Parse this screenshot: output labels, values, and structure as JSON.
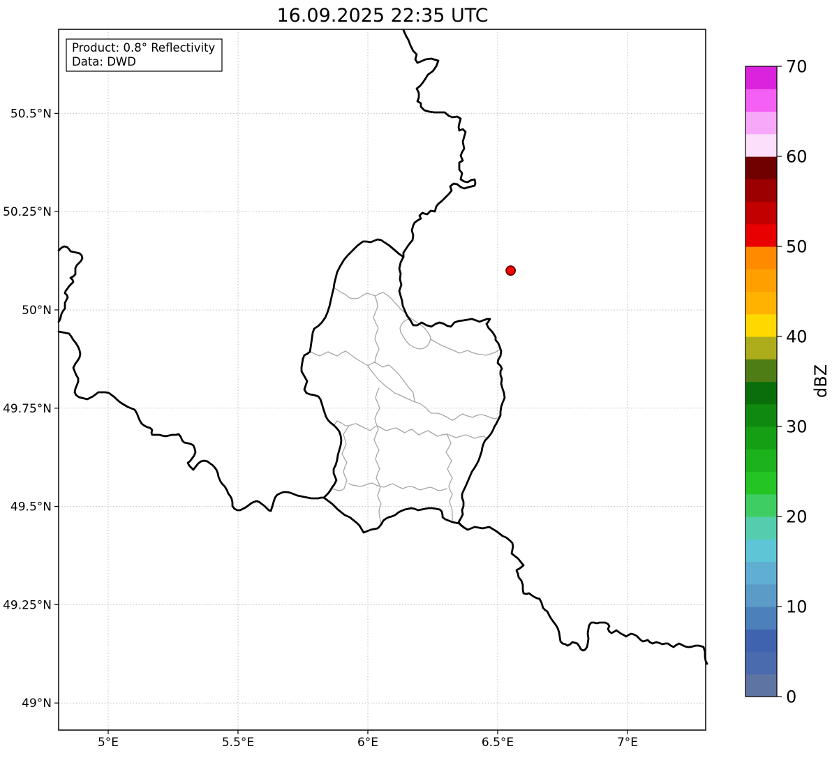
{
  "title": "16.09.2025 22:35 UTC",
  "info_box": {
    "line1": "Product: 0.8° Reflectivity",
    "line2": "Data: DWD"
  },
  "axes": {
    "x_ticks": [
      {
        "value": 5.0,
        "label": "5°E"
      },
      {
        "value": 5.5,
        "label": "5.5°E"
      },
      {
        "value": 6.0,
        "label": "6°E"
      },
      {
        "value": 6.5,
        "label": "6.5°E"
      },
      {
        "value": 7.0,
        "label": "7°E"
      }
    ],
    "y_ticks": [
      {
        "value": 50.5,
        "label": "50.5°N"
      },
      {
        "value": 50.25,
        "label": "50.25°N"
      },
      {
        "value": 50.0,
        "label": "50°N"
      },
      {
        "value": 49.75,
        "label": "49.75°N"
      },
      {
        "value": 49.5,
        "label": "49.5°N"
      },
      {
        "value": 49.25,
        "label": "49.25°N"
      },
      {
        "value": 49.0,
        "label": "49°N"
      }
    ],
    "lon_range": [
      4.81,
      7.31
    ],
    "lat_range": [
      48.93,
      50.71
    ],
    "grid_color": "#bdbdbd"
  },
  "colorbar": {
    "label": "dBZ",
    "min": 0,
    "max": 70,
    "ticks": [
      0,
      10,
      20,
      30,
      40,
      50,
      60,
      70
    ],
    "segment_colors_bottom_to_top": [
      "#5E75A4",
      "#4A6BAD",
      "#3F63AE",
      "#4C80BA",
      "#5B9BC8",
      "#60AFD3",
      "#5EC5D6",
      "#55CDAC",
      "#3ECD63",
      "#24C424",
      "#1CB21C",
      "#159F15",
      "#0F8A0F",
      "#0A6F0A",
      "#4F7D15",
      "#ADAD1B",
      "#FFD800",
      "#FFB300",
      "#FFA000",
      "#FF8A00",
      "#E80000",
      "#C30000",
      "#9D0000",
      "#700000",
      "#FBDFFB",
      "#F8A8F8",
      "#F45FF4",
      "#DA23DC"
    ]
  },
  "radar_marker": {
    "lon": 6.55,
    "lat": 50.1,
    "fill": "#FF0000",
    "edge": "#5a0000"
  },
  "map": {
    "border_color": "#000000",
    "admin_color": "#A6A6A6",
    "country_borders": [
      "578,43 582,52 585,57 588,65 592,73 597,78 595,85 598,90 603,88 610,85 618,84 628,87 625,95 620,102 613,107 610,112 606,118 602,123 597,127 600,133 600,140 598,145 603,148 603,153 608,158 615,160 622,161 630,161 637,161 643,166 648,168 655,167 660,170 658,177 657,182 658,187 663,185 667,189 665,196 663,203 665,213 662,218 660,223 663,230 658,233 658,243 662,248 660,257 665,260 670,261 675,258 680,257 681,262 680,266 672,268 665,270 660,268 655,264 650,263 645,267 647,273 643,278 637,284 633,288 628,292 625,296 623,303 617,302 612,307 608,306 605,305 601,309 603,313 598,316 594,319 592,323 590,330 592,337 591,344 586,350 582,356 578,362 578,368",
      "578,368 574,376 572,385 574,392 573,400 575,408 572,417 574,424 576,431 577,438 580,445 583,452 588,459 592,466 598,466 604,462 611,466 618,468 624,464 630,462 636,464 641,467 646,468 651,462 657,460 664,459 670,458 676,457 682,459 687,461 692,459 698,457 702,457 699,462 697,464 700,470 704,474 707,478 710,483 710,487 714,492 716,497 718,503 717,510 714,515 713,520 717,524 719,528 717,532 717,537 719,543 718,550 720,557 722,563 723,570 720,577 718,583 717,590 717,595 714,601 711,607 708,612 706,617 703,622 699,627 695,631 693,635 691,641 690,647 688,653 686,659 683,665 680,670 676,676 673,683 670,690 667,697 664,703 662,708 662,713 664,719 664,725 662,731 663,737 660,743 657,748 660,752 665,756",
      "578,368 572,364 565,358 558,352 552,348 546,344 541,343 536,345 531,347 525,346 520,346 516,349 512,352 507,357 502,362 498,366 493,372 490,377 487,382 483,390 481,398 479,406 478,413 476,421 474,430 472,439 469,448 466,455 461,462 456,467 450,471 448,477 447,484 446,491 445,498 444,504 440,507 436,509 434,514 433,520 432,526 432,532 436,539 440,546 438,552 436,558 439,563 444,565 450,566 456,568 459,572 461,578 463,585 465,591 467,597 470,602 474,606 478,609 482,613 486,618 488,624 489,631 488,638 486,645 484,652 483,659 481,666 478,672 478,678 480,683 482,688 479,694 476,698 473,703 470,707 467,710 464,713 468,716 472,719 476,722 480,726 484,730 489,734 494,738 501,741 506,745 511,749 515,753 518,758 521,763 526,761 531,759 536,758 541,757 544,754 547,750 549,746 553,743 557,741 561,740 566,738 571,734 575,732 580,730 585,729 589,728 594,729 599,731 604,730 609,729 614,728 619,728 625,729 630,730 633,733 634,738 634,741 638,744 643,746 648,748 653,749 658,750 661,753 665,756",
      "665,756 670,759 675,757 680,755 686,756 691,757 696,756 701,755 706,758 711,761 715,764 720,768 725,770 730,774 734,778 735,783 734,788 733,793 738,797 742,800 746,805 750,810 745,814 740,817 742,822 743,827 747,832 749,838 749,844 750,850 754,851 758,850 762,853 765,855 769,857 773,858 776,864 778,871 781,874 784,876 787,882 790,887 793,891 796,895 799,900 801,906 802,913 803,919 806,922 810,923 813,925 817,923 820,920 824,921 827,922 830,926 832,930 835,932 838,931 841,927 842,922 843,915 842,908 843,901 844,896 847,892 851,892 855,893 859,892 863,892 867,892 871,894 873,897 871,901 873,905 876,907 880,905 883,903 887,906 890,908 894,910 897,912 900,910 904,908 908,909 912,911 915,914 918,917 921,919 925,918 928,917 931,920 935,922 940,920 944,921 949,923 953,922 957,922 961,925 965,927 969,924 973,922 977,924 981,926 985,927 989,927 993,926 997,925 1001,925 1005,926 1008,927 1010,934 1010,941 1011,947 1013,951",
      "84,475 89,476 94,477 99,478 102,482 105,487 109,492 112,497 114,502 115,507 114,512 111,517 108,521 105,527 107,532 109,537 112,542 112,547 110,552 108,557 107,562 109,566 113,569 117,570 121,571 125,572 129,570 133,568 137,565 141,562 146,562 151,562 156,563 160,566 164,569 168,573 173,577 178,580 183,583 188,585 193,587 196,592 198,597 200,602 203,607 207,610 211,612 215,613 218,616 217,620 218,623 223,623 228,623 232,624 237,625 242,624 247,623 252,623 256,622 259,626 261,631 264,634 269,635 273,636 277,638 279,643 280,648 278,653 275,657 272,661 269,663 271,667 274,670 277,673 280,669 284,664 288,661 293,660 297,661 301,664 304,666 307,669 310,673 312,678 313,683 316,690 319,694 322,697 325,702 327,707 330,711 332,715 333,720 333,725 336,729 340,731 344,731 348,729 352,727 356,724 360,721 364,719 368,718 371,719 375,722 379,725 382,728 385,731 388,732 390,726 392,719 394,713 397,709 401,707 406,705 411,705 416,706 421,708 426,710 431,711 436,712 441,713 446,714 451,714 456,714 460,713 464,713",
      "84,359 88,355 92,353 96,354 99,357 101,360 105,361 110,362 114,363 117,366 118,370 116,374 113,377 110,380 108,384 108,389 108,393 105,396 101,398 104,401 105,404 102,407 99,410 97,413 94,417 93,420 96,423 97,426 95,430 93,434 93,438 93,442 90,446 88,450 87,454 86,458 84,461"
    ],
    "admin_borders": [
      "480,413 487,418 495,422 501,427 508,428 514,427 520,423 526,420 532,422 538,424 543,421 549,419 555,423 561,428 565,433 570,438 574,443 580,448 584,452 588,456",
      "445,504 451,507 458,510 464,507 470,504 476,507 483,510 489,506 495,503 501,507 506,511 512,515 517,518 522,521 527,524 532,521 537,519 542,522 548,526 553,524 557,523 562,527 567,532 571,536 575,541 578,545 581,549 584,553 587,557 590,560 592,563 593,569 594,575",
      "537,424 540,432 541,440 538,447 535,455 538,462 542,470 539,478 537,486 540,493 543,500 540,507 538,513 537,519",
      "588,456 593,459 597,462 602,465 606,468 610,472 613,476 616,481 617,486 615,491 612,496 607,499 602,500 597,499 592,497 587,494 583,490 580,486 577,481 574,476 573,470 575,465 578,461 583,458 588,456",
      "617,486 624,490 631,494 638,497 645,500 652,503 658,506 664,504 670,502 676,505 683,507 690,508 696,509 703,507 709,505 716,501",
      "527,524 531,530 535,535 539,540 543,545 548,549 552,553 558,557 565,563 570,565 575,567 579,569 583,571 588,573 592,575 598,577 603,579 607,582 611,585 614,589 618,592 622,592 626,592 630,593 633,594 637,596 641,598 644,600 648,602 652,600 655,598 659,595 663,593 667,595 670,596 674,597 677,598 681,596 684,595 688,594 690,594 694,595 697,596 700,597 702,598 705,599 708,600 712,599",
      "474,606 478,610 483,603 489,606 495,610 500,610 505,608 510,607 516,610 522,613 527,615 530,617 535,613 540,610 546,613 553,617 560,615 567,613 573,616 580,620 585,617 590,615 595,619 600,623 606,620 613,617 620,621 627,625 633,623 640,622 646,624 653,627 660,625 667,623 673,625 680,628 686,626 693,625 697,628",
      "543,556 540,563 538,570 541,577 544,585 540,592 537,600 539,607 542,615 539,622 536,630 539,637 543,645 540,651 538,658 541,665 544,672 541,678 539,685 542,691 545,698 543,704 541,710 543,716 546,722 544,727 543,733 544,741 546,750",
      "500,610 496,616 492,622 494,629 496,636 493,643 490,650 493,656 497,663 494,669 492,676 494,682 497,688 495,694 493,700 490,702 485,703 476,700",
      "500,693 505,695 511,696 517,697 523,695 528,693 533,692 539,695 545,697 550,698 555,696 559,694 563,693 568,696 572,698 577,700 582,698 586,697 590,697 595,699 599,701 603,702 608,700 612,699 617,698 622,700 626,702 630,703 634,702 637,701 640,700",
      "640,622 643,628 646,635 643,641 639,648 643,654 647,660 644,666 641,672 644,678 648,685 645,691 643,697 645,703 648,708 646,713 644,718 645,723 647,727 648,733 648,746"
    ]
  }
}
